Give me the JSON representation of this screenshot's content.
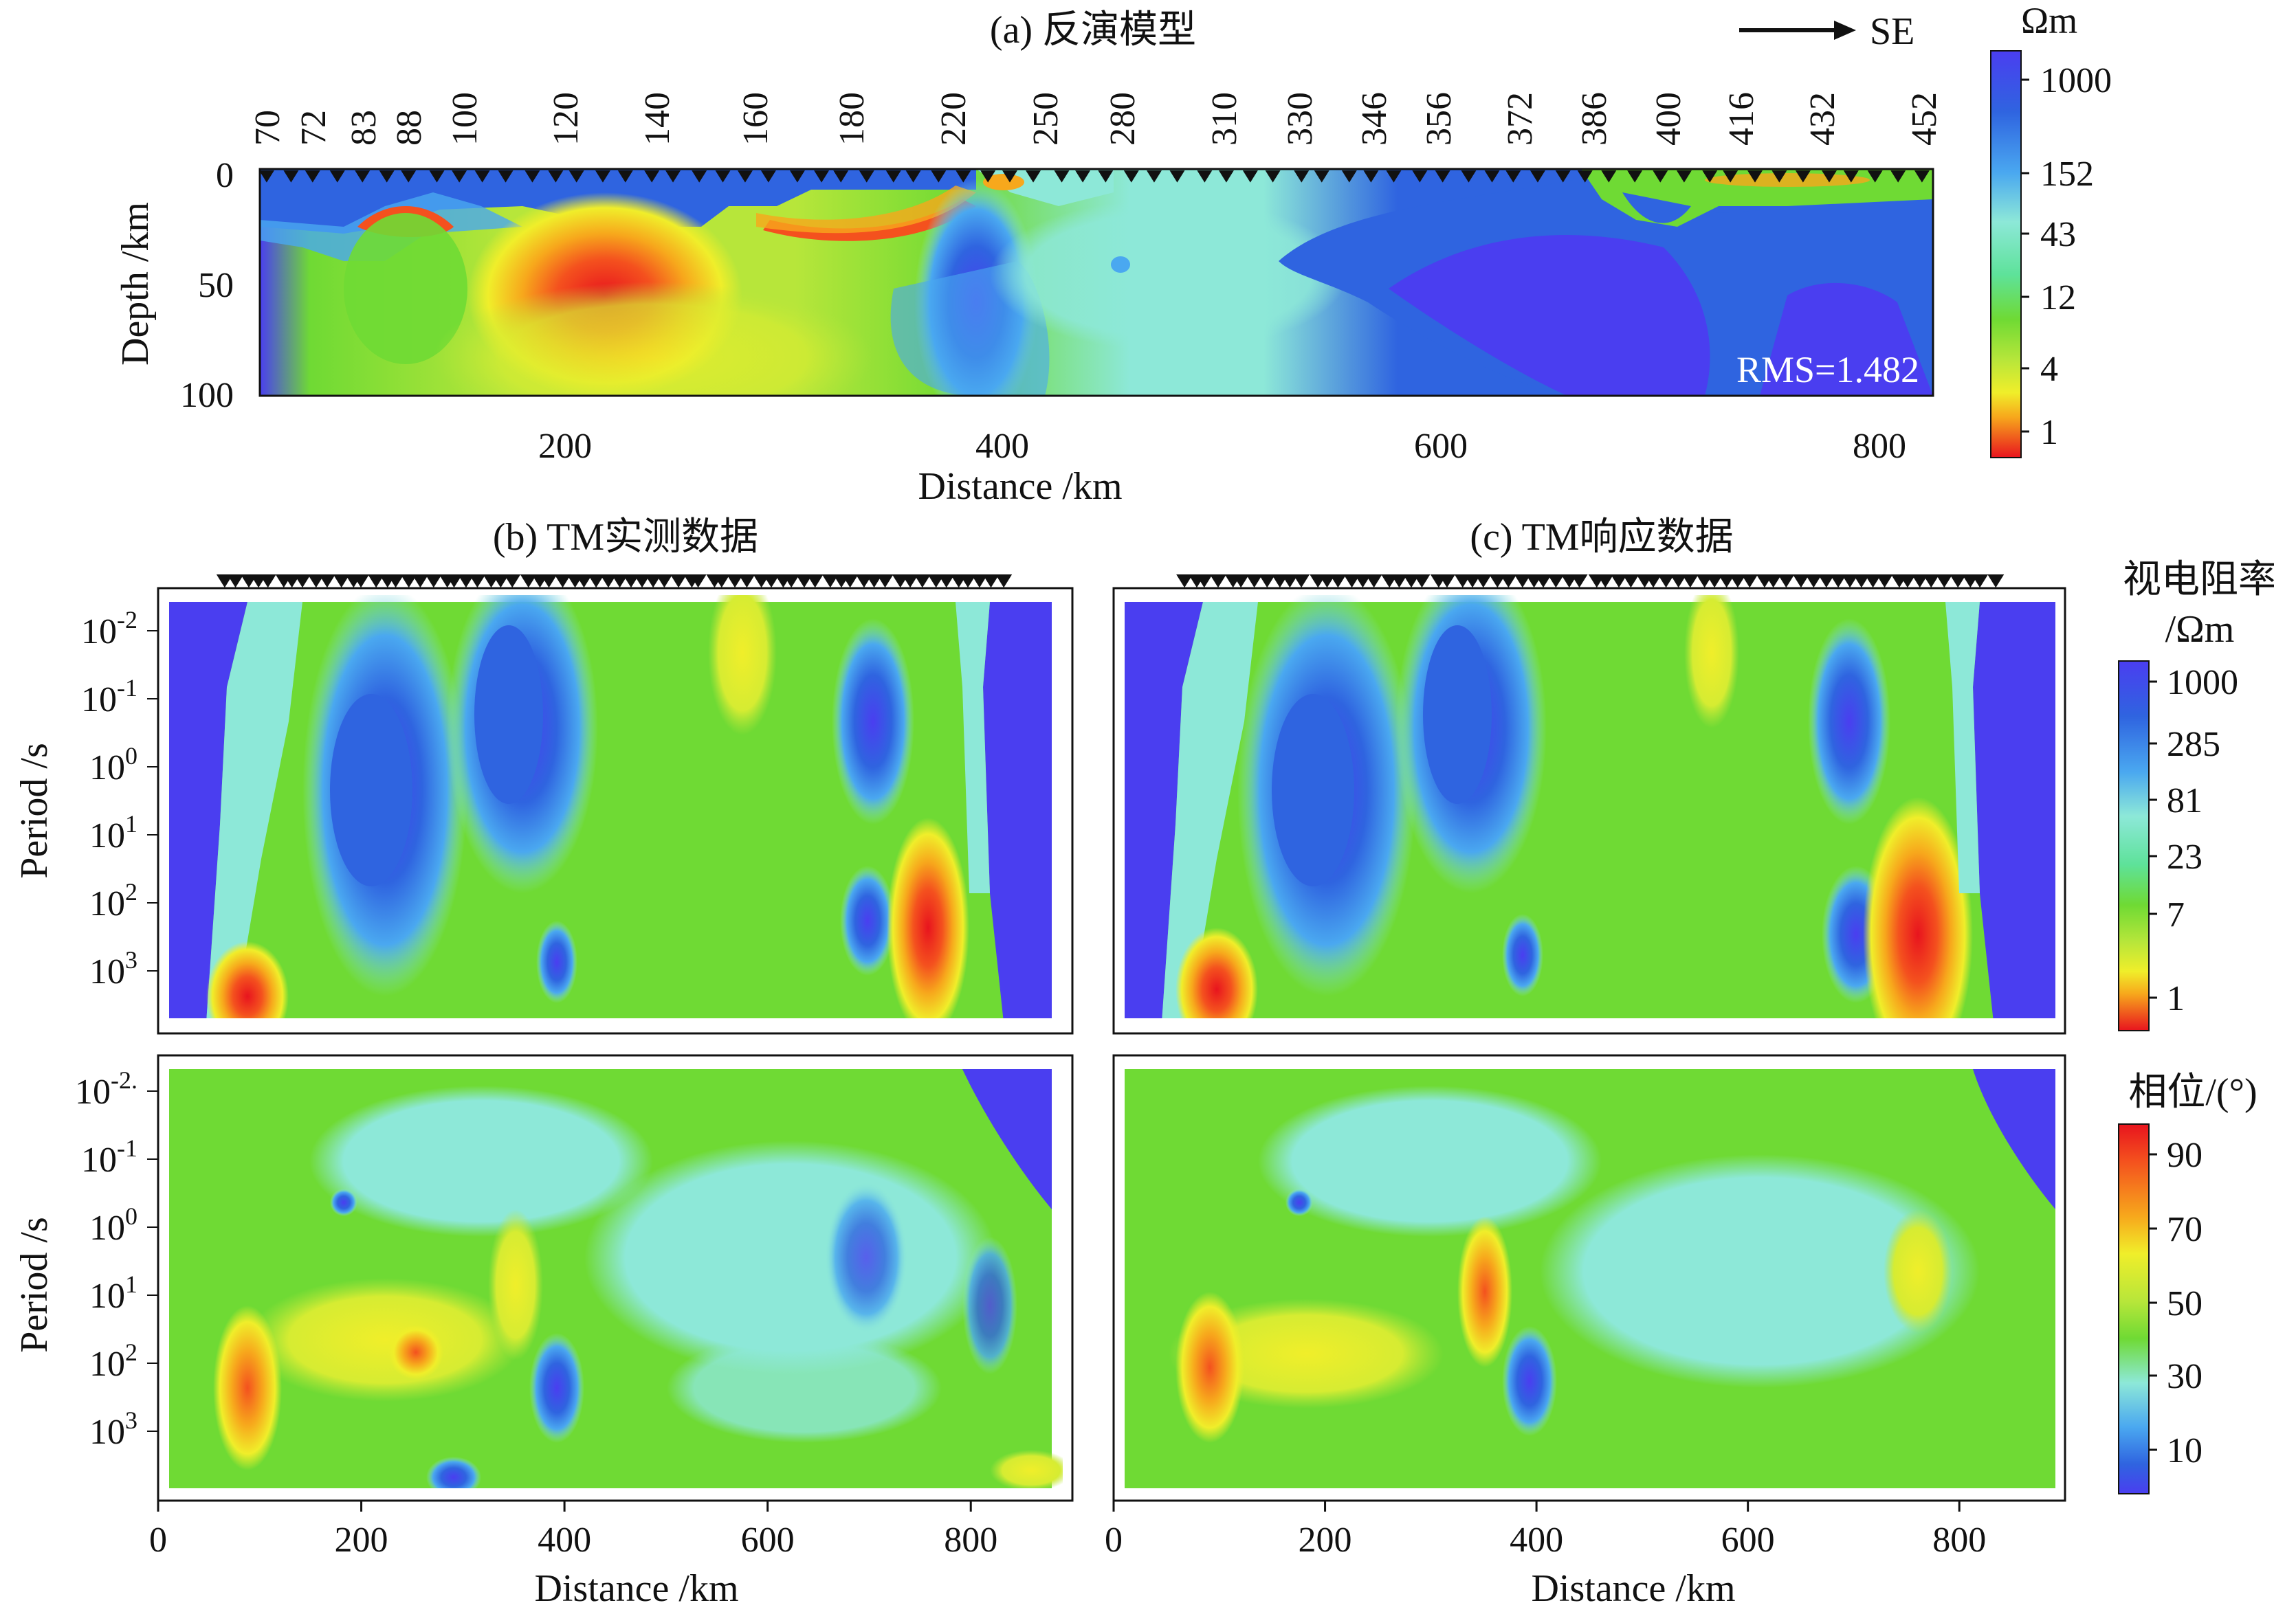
{
  "panel_a": {
    "title": "(a) 反演模型",
    "direction_label": "SE",
    "rms": "RMS=1.482",
    "ylabel": "Depth /km",
    "xlabel": "Distance /km",
    "station_labels": [
      "70",
      "72",
      "83",
      "88",
      "100",
      "120",
      "140",
      "160",
      "180",
      "220",
      "250",
      "280",
      "310",
      "330",
      "346",
      "356",
      "372",
      "386",
      "400",
      "416",
      "432",
      "452"
    ],
    "colorbar": {
      "unit": "Ωm",
      "ticks": [
        "1000",
        "152",
        "43",
        "12",
        "4",
        "1"
      ]
    }
  },
  "panel_b": {
    "title": "(b) TM实测数据"
  },
  "panel_c": {
    "title": "(c) TM响应数据"
  },
  "period_label": "Period /s",
  "distance_label": "Distance /km",
  "resistivity_colorbar": {
    "label_line1": "视电阻率",
    "label_line2": "/Ωm",
    "ticks": [
      "1000",
      "285",
      "81",
      "23",
      "7",
      "1"
    ]
  },
  "phase_colorbar": {
    "label": "相位/(°)",
    "ticks": [
      "90",
      "70",
      "50",
      "30",
      "10"
    ]
  },
  "colors": {
    "scale": [
      "#e8141e",
      "#f4511e",
      "#f7a81c",
      "#f0ee2a",
      "#b7e63a",
      "#6fda34",
      "#5ee29a",
      "#8de8d8",
      "#4aa8f0",
      "#2f64e0",
      "#4a3ef0"
    ]
  },
  "chart_data": [
    {
      "type": "heatmap",
      "title": "(a) 反演模型",
      "xlabel": "Distance /km",
      "ylabel": "Depth /km",
      "xlim": [
        60,
        830
      ],
      "ylim": [
        0,
        100
      ],
      "x_ticks": [
        200,
        400,
        600,
        800
      ],
      "y_ticks": [
        0,
        50,
        100
      ],
      "value_label": "Ωm",
      "colorbar_ticks": [
        1000,
        152,
        43,
        12,
        4,
        1
      ],
      "annotation": "RMS=1.482",
      "features": [
        {
          "x": 110,
          "depth": 20,
          "resistivity": 1000
        },
        {
          "x": 220,
          "depth": 55,
          "resistivity": 2
        },
        {
          "x": 390,
          "depth": 60,
          "resistivity": 1000
        },
        {
          "x": 640,
          "depth": 50,
          "resistivity": 1000
        },
        {
          "x": 760,
          "depth": 70,
          "resistivity": 1000
        },
        {
          "x": 480,
          "depth": 40,
          "resistivity": 80
        },
        {
          "x": 340,
          "depth": 25,
          "resistivity": 3
        }
      ]
    },
    {
      "type": "heatmap",
      "title": "(b) TM实测数据",
      "quantity": "apparent resistivity (Ωm)",
      "xlabel": "Distance /km",
      "ylabel": "Period /s",
      "xlim": [
        0,
        900
      ],
      "x_ticks": [
        0,
        200,
        400,
        600,
        800
      ],
      "y_ticks": [
        "10^-2",
        "10^-1",
        "10^0",
        "10^1",
        "10^2",
        "10^3"
      ],
      "features": [
        {
          "x": 20,
          "log_period": 0.5,
          "resistivity": 1000
        },
        {
          "x": 195,
          "log_period": 0.2,
          "resistivity": 1000
        },
        {
          "x": 340,
          "log_period": 0.0,
          "resistivity": 1000
        },
        {
          "x": 690,
          "log_period": 0.0,
          "resistivity": 1000
        },
        {
          "x": 760,
          "log_period": 2.2,
          "resistivity": 2
        },
        {
          "x": 100,
          "log_period": 3.2,
          "resistivity": 3
        },
        {
          "x": 870,
          "log_period": 0.5,
          "resistivity": 1000
        }
      ]
    },
    {
      "type": "heatmap",
      "title": "(c) TM响应数据",
      "quantity": "apparent resistivity (Ωm)",
      "xlabel": "Distance /km",
      "ylabel": "Period /s",
      "xlim": [
        0,
        900
      ],
      "x_ticks": [
        0,
        200,
        400,
        600,
        800
      ],
      "features": [
        {
          "x": 20,
          "log_period": 0.5,
          "resistivity": 1000
        },
        {
          "x": 190,
          "log_period": 0.3,
          "resistivity": 1000
        },
        {
          "x": 335,
          "log_period": 0.0,
          "resistivity": 1000
        },
        {
          "x": 690,
          "log_period": 0.5,
          "resistivity": 1000
        },
        {
          "x": 760,
          "log_period": 2.8,
          "resistivity": 1
        },
        {
          "x": 100,
          "log_period": 3.3,
          "resistivity": 2
        },
        {
          "x": 870,
          "log_period": 0.5,
          "resistivity": 1000
        }
      ]
    },
    {
      "type": "heatmap",
      "title": "(b) TM实测数据",
      "quantity": "phase (°)",
      "xlabel": "Distance /km",
      "ylabel": "Period /s",
      "xlim": [
        0,
        900
      ],
      "x_ticks": [
        0,
        200,
        400,
        600,
        800
      ],
      "y_ticks": [
        "10^-2",
        "10^-1",
        "10^0",
        "10^1",
        "10^2",
        "10^3"
      ],
      "features": [
        {
          "x": 90,
          "log_period": 2.5,
          "phase": 80
        },
        {
          "x": 250,
          "log_period": 1.8,
          "phase": 75
        },
        {
          "x": 350,
          "log_period": 1.5,
          "phase": 70
        },
        {
          "x": 390,
          "log_period": 2.6,
          "phase": 15
        },
        {
          "x": 860,
          "log_period": -1.5,
          "phase": 5
        },
        {
          "x": 670,
          "log_period": 1.2,
          "phase": 20
        }
      ]
    },
    {
      "type": "heatmap",
      "title": "(c) TM响应数据",
      "quantity": "phase (°)",
      "xlabel": "Distance /km",
      "ylabel": "Period /s",
      "xlim": [
        0,
        900
      ],
      "x_ticks": [
        0,
        200,
        400,
        600,
        800
      ],
      "features": [
        {
          "x": 95,
          "log_period": 2.3,
          "phase": 78
        },
        {
          "x": 350,
          "log_period": 1.8,
          "phase": 72
        },
        {
          "x": 395,
          "log_period": 2.4,
          "phase": 12
        },
        {
          "x": 750,
          "log_period": 0.7,
          "phase": 70
        },
        {
          "x": 860,
          "log_period": -1.5,
          "phase": 5
        }
      ]
    }
  ]
}
